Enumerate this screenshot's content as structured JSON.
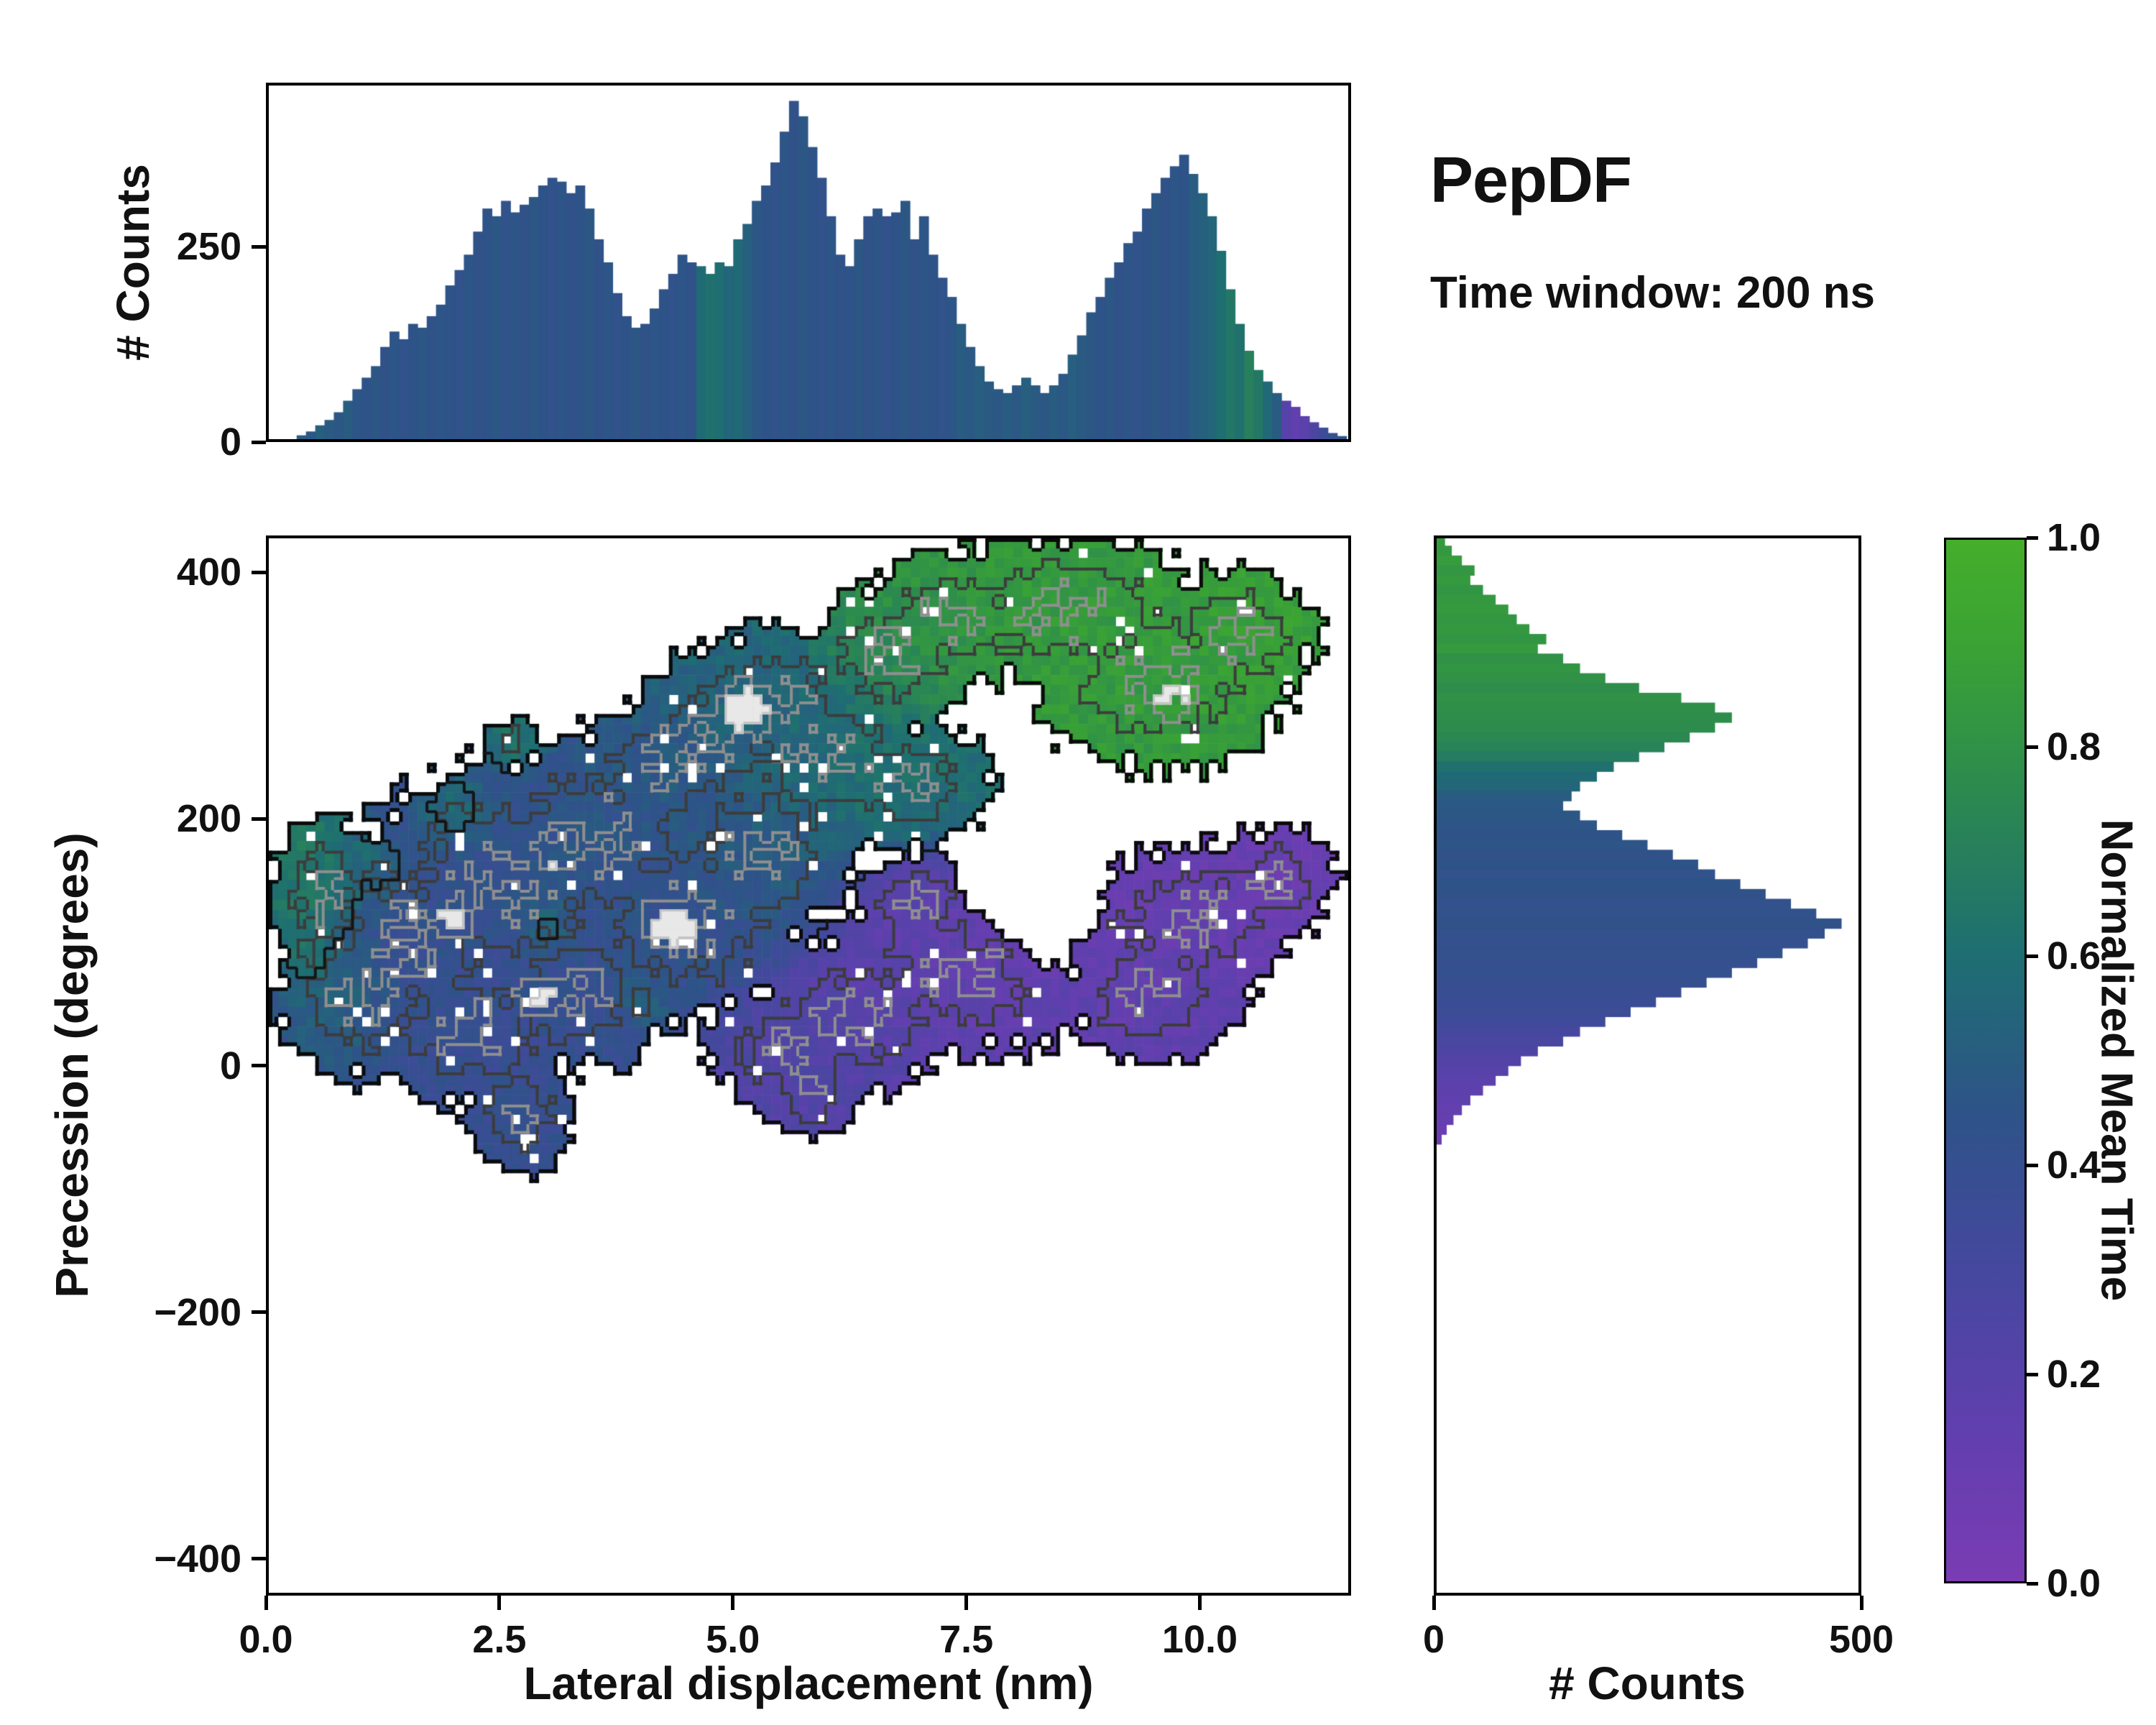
{
  "title": "PepDF",
  "subtitle": "Time window: 200 ns",
  "colorbar": {
    "label": "Normalized Mean Time",
    "ticks": {
      "values": [
        0,
        0.2,
        0.4,
        0.6,
        0.8,
        1.0
      ],
      "labels": [
        "0.0",
        "0.2",
        "0.4",
        "0.6",
        "0.8",
        "1.0"
      ]
    },
    "stops": [
      [
        0.0,
        "#7a3cb3"
      ],
      [
        0.15,
        "#603fae"
      ],
      [
        0.3,
        "#45489e"
      ],
      [
        0.45,
        "#2e5388"
      ],
      [
        0.6,
        "#1e6e72"
      ],
      [
        0.75,
        "#2b8851"
      ],
      [
        0.9,
        "#3aa334"
      ],
      [
        1.0,
        "#45ae2b"
      ]
    ]
  },
  "chart_data": [
    {
      "id": "top_hist",
      "type": "bar",
      "ylabel": "# Counts",
      "xlim": [
        0,
        11.62
      ],
      "ylim": [
        0,
        460
      ],
      "yticks": {
        "values": [
          0,
          250
        ],
        "labels": [
          "0",
          "250"
        ]
      },
      "x_start": 0.3,
      "x_step": 0.1,
      "values": [
        5,
        10,
        18,
        25,
        35,
        50,
        65,
        80,
        95,
        120,
        140,
        130,
        150,
        145,
        160,
        175,
        200,
        220,
        240,
        270,
        300,
        290,
        310,
        295,
        305,
        315,
        330,
        340,
        335,
        320,
        330,
        300,
        260,
        230,
        190,
        160,
        145,
        150,
        170,
        195,
        215,
        240,
        230,
        225,
        215,
        230,
        225,
        260,
        280,
        310,
        330,
        360,
        400,
        440,
        420,
        380,
        340,
        290,
        240,
        225,
        260,
        290,
        300,
        290,
        295,
        310,
        260,
        290,
        240,
        210,
        185,
        150,
        120,
        95,
        75,
        65,
        60,
        70,
        80,
        70,
        60,
        70,
        85,
        110,
        135,
        165,
        185,
        210,
        230,
        255,
        270,
        300,
        320,
        340,
        355,
        370,
        345,
        320,
        290,
        245,
        195,
        150,
        115,
        90,
        75,
        60,
        50,
        42,
        30,
        22,
        15,
        8,
        4
      ],
      "color_values": [
        0.5,
        0.48,
        0.52,
        0.49,
        0.47,
        0.5,
        0.46,
        0.45,
        0.47,
        0.44,
        0.46,
        0.43,
        0.45,
        0.47,
        0.44,
        0.46,
        0.45,
        0.43,
        0.46,
        0.44,
        0.45,
        0.47,
        0.43,
        0.46,
        0.44,
        0.47,
        0.45,
        0.43,
        0.46,
        0.44,
        0.45,
        0.47,
        0.44,
        0.46,
        0.43,
        0.45,
        0.47,
        0.44,
        0.46,
        0.45,
        0.43,
        0.46,
        0.44,
        0.58,
        0.62,
        0.6,
        0.55,
        0.57,
        0.52,
        0.47,
        0.45,
        0.43,
        0.46,
        0.44,
        0.47,
        0.45,
        0.43,
        0.46,
        0.44,
        0.45,
        0.47,
        0.44,
        0.46,
        0.43,
        0.45,
        0.47,
        0.44,
        0.46,
        0.45,
        0.43,
        0.46,
        0.5,
        0.48,
        0.51,
        0.49,
        0.47,
        0.5,
        0.48,
        0.52,
        0.49,
        0.47,
        0.5,
        0.48,
        0.51,
        0.49,
        0.47,
        0.45,
        0.47,
        0.44,
        0.46,
        0.43,
        0.45,
        0.47,
        0.44,
        0.46,
        0.45,
        0.5,
        0.52,
        0.55,
        0.6,
        0.65,
        0.62,
        0.7,
        0.66,
        0.57,
        0.5,
        0.2,
        0.15,
        0.18,
        0.25,
        0.35,
        0.4,
        0.45
      ]
    },
    {
      "id": "main",
      "type": "heatmap",
      "xlabel": "Lateral displacement (nm)",
      "ylabel": "Precession (degrees)",
      "xlim": [
        0,
        11.62
      ],
      "ylim": [
        -430,
        430
      ],
      "xticks": {
        "values": [
          0,
          2.5,
          5,
          7.5,
          10
        ],
        "labels": [
          "0.0",
          "2.5",
          "5.0",
          "7.5",
          "10.0"
        ]
      },
      "yticks": {
        "values": [
          -400,
          -200,
          0,
          200,
          400
        ],
        "labels": [
          "−400",
          "−200",
          "0",
          "200",
          "400"
        ]
      },
      "grid_nx": 116,
      "grid_ny": 108,
      "render": {
        "outer_level": 0.5,
        "inner_levels": [
          0.8,
          0.97,
          1.3
        ],
        "region_edge_delta": 0.22
      },
      "blobs": [
        {
          "cx": 8.6,
          "cy": 370,
          "rx": 1.3,
          "ry": 55,
          "v": 0.85
        },
        {
          "cx": 9.6,
          "cy": 315,
          "rx": 1.2,
          "ry": 65,
          "v": 0.85
        },
        {
          "cx": 7.4,
          "cy": 365,
          "rx": 0.9,
          "ry": 50,
          "v": 0.82
        },
        {
          "cx": 10.4,
          "cy": 350,
          "rx": 0.8,
          "ry": 48,
          "v": 0.88
        },
        {
          "cx": 6.7,
          "cy": 335,
          "rx": 0.75,
          "ry": 50,
          "v": 0.75
        },
        {
          "cx": 5.4,
          "cy": 295,
          "rx": 1.0,
          "ry": 55,
          "v": 0.55
        },
        {
          "cx": 4.7,
          "cy": 262,
          "rx": 0.9,
          "ry": 50,
          "v": 0.5
        },
        {
          "cx": 6.0,
          "cy": 252,
          "rx": 1.0,
          "ry": 55,
          "v": 0.6
        },
        {
          "cx": 6.9,
          "cy": 228,
          "rx": 0.8,
          "ry": 45,
          "v": 0.6
        },
        {
          "cx": 2.5,
          "cy": 150,
          "rx": 1.4,
          "ry": 85,
          "v": 0.42
        },
        {
          "cx": 1.5,
          "cy": 100,
          "rx": 1.0,
          "ry": 75,
          "v": 0.4
        },
        {
          "cx": 3.5,
          "cy": 185,
          "rx": 1.2,
          "ry": 75,
          "v": 0.45
        },
        {
          "cx": 4.5,
          "cy": 120,
          "rx": 1.1,
          "ry": 75,
          "v": 0.42
        },
        {
          "cx": 2.2,
          "cy": 30,
          "rx": 1.0,
          "ry": 55,
          "v": 0.38
        },
        {
          "cx": 1.0,
          "cy": 60,
          "rx": 0.8,
          "ry": 65,
          "v": 0.45
        },
        {
          "cx": 3.3,
          "cy": 60,
          "rx": 0.9,
          "ry": 55,
          "v": 0.4
        },
        {
          "cx": 5.3,
          "cy": 175,
          "rx": 0.9,
          "ry": 65,
          "v": 0.5
        },
        {
          "cx": 4.2,
          "cy": 240,
          "rx": 0.8,
          "ry": 48,
          "v": 0.48
        },
        {
          "cx": 0.6,
          "cy": 140,
          "rx": 0.5,
          "ry": 55,
          "v": 0.7
        },
        {
          "cx": 0.8,
          "cy": 55,
          "rx": 0.45,
          "ry": 40,
          "v": 0.6
        },
        {
          "cx": 7.5,
          "cy": 80,
          "rx": 1.3,
          "ry": 65,
          "v": 0.15
        },
        {
          "cx": 8.8,
          "cy": 120,
          "rx": 1.2,
          "ry": 55,
          "v": 0.12
        },
        {
          "cx": 10.0,
          "cy": 120,
          "rx": 1.0,
          "ry": 52,
          "v": 0.12
        },
        {
          "cx": 9.5,
          "cy": 60,
          "rx": 0.9,
          "ry": 48,
          "v": 0.15
        },
        {
          "cx": 6.3,
          "cy": 40,
          "rx": 1.0,
          "ry": 55,
          "v": 0.2
        },
        {
          "cx": 5.6,
          "cy": 15,
          "rx": 0.8,
          "ry": 42,
          "v": 0.25
        },
        {
          "cx": 10.8,
          "cy": 150,
          "rx": 0.6,
          "ry": 38,
          "v": 0.1
        },
        {
          "cx": 7.0,
          "cy": 130,
          "rx": 0.6,
          "ry": 38,
          "v": 0.18
        },
        {
          "cx": 2.7,
          "cy": -40,
          "rx": 0.5,
          "ry": 40,
          "v": 0.4
        },
        {
          "cx": 5.8,
          "cy": -20,
          "rx": 0.5,
          "ry": 35,
          "v": 0.22
        },
        {
          "cx": 2.0,
          "cy": 205,
          "rx": 0.35,
          "ry": 28,
          "v": 0.68,
          "a": 0.9
        },
        {
          "cx": 1.2,
          "cy": 160,
          "rx": 0.3,
          "ry": 25,
          "v": 0.65,
          "a": 0.9
        },
        {
          "cx": 3.0,
          "cy": 115,
          "rx": 0.3,
          "ry": 25,
          "v": 0.7,
          "a": 0.9
        },
        {
          "cx": 4.0,
          "cy": 55,
          "rx": 0.3,
          "ry": 22,
          "v": 0.62,
          "a": 0.9
        },
        {
          "cx": 2.65,
          "cy": 262,
          "rx": 0.3,
          "ry": 22,
          "v": 0.66,
          "a": 0.9
        },
        {
          "cx": 0.45,
          "cy": 90,
          "rx": 0.25,
          "ry": 30,
          "v": 0.72,
          "a": 0.9
        },
        {
          "cx": 8.35,
          "cy": 140,
          "rx": 0.4,
          "ry": 30,
          "v": 0.12,
          "a": -1.6
        },
        {
          "cx": 5.15,
          "cy": 290,
          "rx": 0.35,
          "ry": 24,
          "v": 0.55,
          "a": 1.6
        },
        {
          "cx": 4.35,
          "cy": 115,
          "rx": 0.35,
          "ry": 22,
          "v": 0.42,
          "a": 1.6
        },
        {
          "cx": 2.0,
          "cy": 120,
          "rx": 0.3,
          "ry": 20,
          "v": 0.42,
          "a": 1.4
        },
        {
          "cx": 2.9,
          "cy": 55,
          "rx": 0.3,
          "ry": 20,
          "v": 0.4,
          "a": 1.4
        },
        {
          "cx": 3.1,
          "cy": 170,
          "rx": 0.3,
          "ry": 18,
          "v": 0.45,
          "a": 1.3
        },
        {
          "cx": 9.7,
          "cy": 300,
          "rx": 0.35,
          "ry": 22,
          "v": 0.85,
          "a": 1.4
        },
        {
          "cx": 7.9,
          "cy": 95,
          "rx": 0.3,
          "ry": 18,
          "v": 0.15,
          "a": 1.3
        },
        {
          "cx": 4.3,
          "cy": 262,
          "rx": 0.25,
          "ry": 16,
          "v": 0.5,
          "a": 1.3
        }
      ]
    },
    {
      "id": "right_hist",
      "type": "bar",
      "orientation": "horizontal",
      "xlabel": "# Counts",
      "xlim": [
        0,
        500
      ],
      "ylim": [
        -430,
        430
      ],
      "xticks": {
        "values": [
          0,
          500
        ],
        "labels": [
          "0",
          "500"
        ]
      },
      "y_start": 428,
      "y_step": -8,
      "values": [
        10,
        18,
        30,
        45,
        40,
        55,
        70,
        85,
        95,
        110,
        130,
        120,
        150,
        170,
        200,
        240,
        290,
        330,
        350,
        330,
        300,
        270,
        240,
        210,
        190,
        170,
        160,
        150,
        170,
        190,
        220,
        250,
        280,
        310,
        330,
        360,
        390,
        420,
        450,
        480,
        460,
        440,
        410,
        380,
        350,
        320,
        290,
        260,
        230,
        200,
        170,
        150,
        120,
        100,
        85,
        70,
        55,
        40,
        30,
        20,
        12,
        6
      ],
      "color_values": [
        0.85,
        0.84,
        0.86,
        0.83,
        0.85,
        0.82,
        0.84,
        0.85,
        0.83,
        0.84,
        0.82,
        0.85,
        0.8,
        0.82,
        0.8,
        0.78,
        0.8,
        0.79,
        0.78,
        0.77,
        0.75,
        0.72,
        0.68,
        0.62,
        0.58,
        0.55,
        0.5,
        0.48,
        0.47,
        0.46,
        0.45,
        0.46,
        0.44,
        0.45,
        0.43,
        0.45,
        0.44,
        0.42,
        0.43,
        0.44,
        0.42,
        0.41,
        0.42,
        0.4,
        0.41,
        0.4,
        0.38,
        0.37,
        0.36,
        0.33,
        0.3,
        0.28,
        0.25,
        0.22,
        0.2,
        0.18,
        0.16,
        0.15,
        0.13,
        0.12,
        0.1,
        0.08
      ]
    }
  ]
}
